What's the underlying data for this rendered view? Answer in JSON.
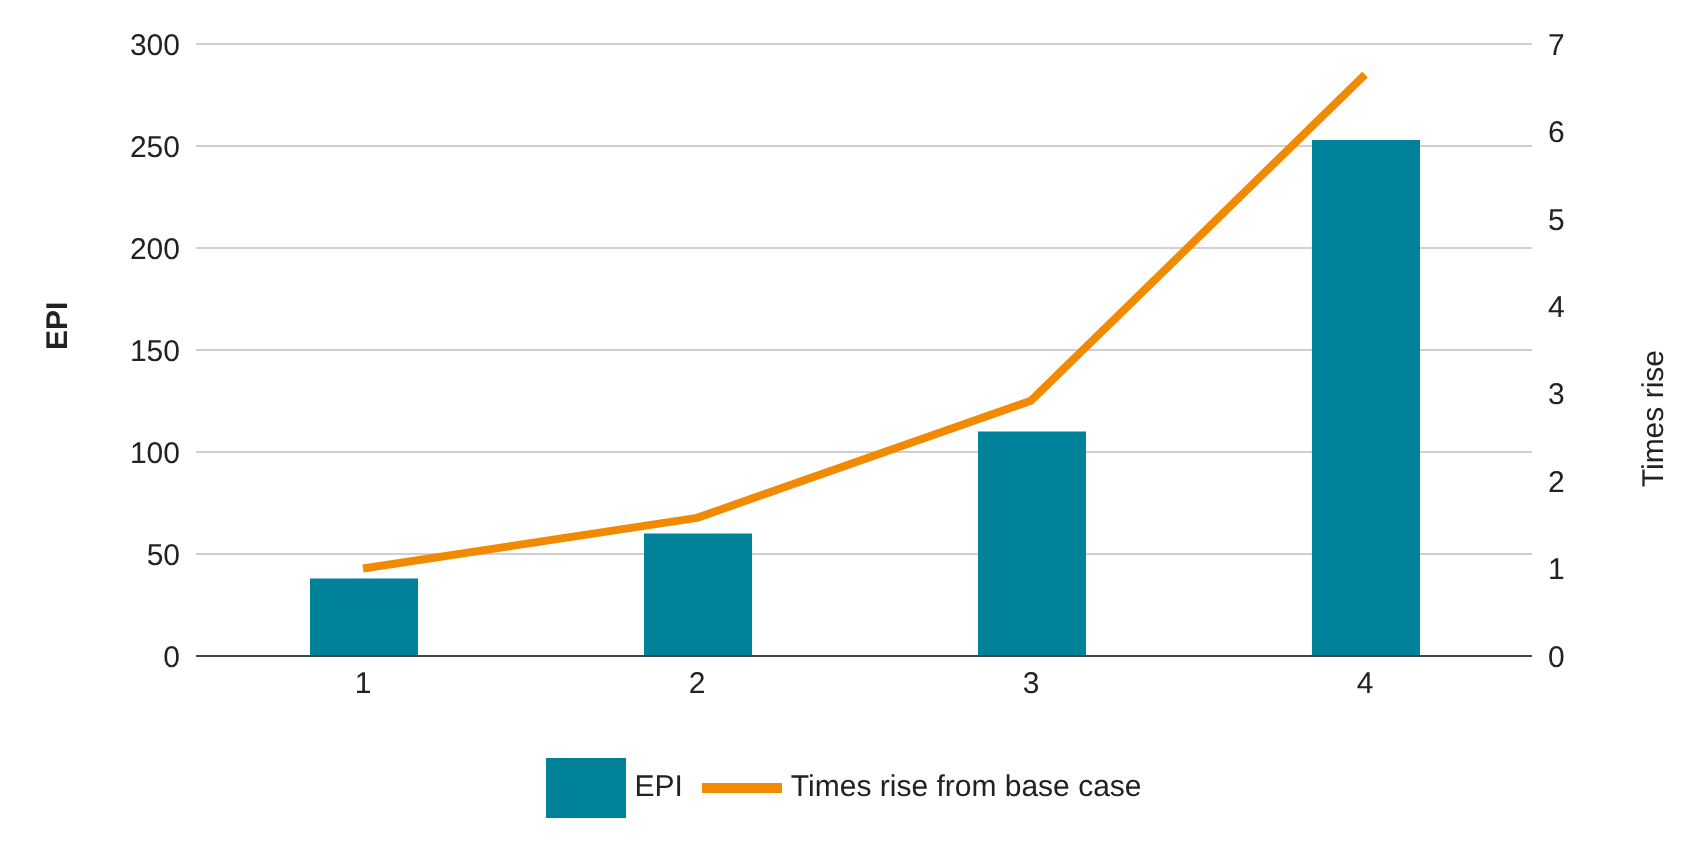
{
  "chart_data": {
    "type": "bar",
    "categories": [
      "1",
      "2",
      "3",
      "4"
    ],
    "series": [
      {
        "name": "EPI",
        "color": "#00829a",
        "values": [
          38,
          60,
          110,
          253
        ]
      },
      {
        "name": "Times rise from base case",
        "type": "line",
        "axis": "y2",
        "color": "#f18a00",
        "values": [
          1.0,
          1.58,
          2.92,
          6.65
        ]
      }
    ],
    "ylabel": "EPI",
    "y2label": "Times rise",
    "ylim": [
      0,
      300
    ],
    "yticks": [
      0,
      50,
      100,
      150,
      200,
      250,
      300
    ],
    "y2lim": [
      0,
      7
    ],
    "y2ticks": [
      0,
      1,
      2,
      3,
      4,
      5,
      6,
      7
    ],
    "grid": "y",
    "legend": "bottom",
    "marker": "none"
  }
}
